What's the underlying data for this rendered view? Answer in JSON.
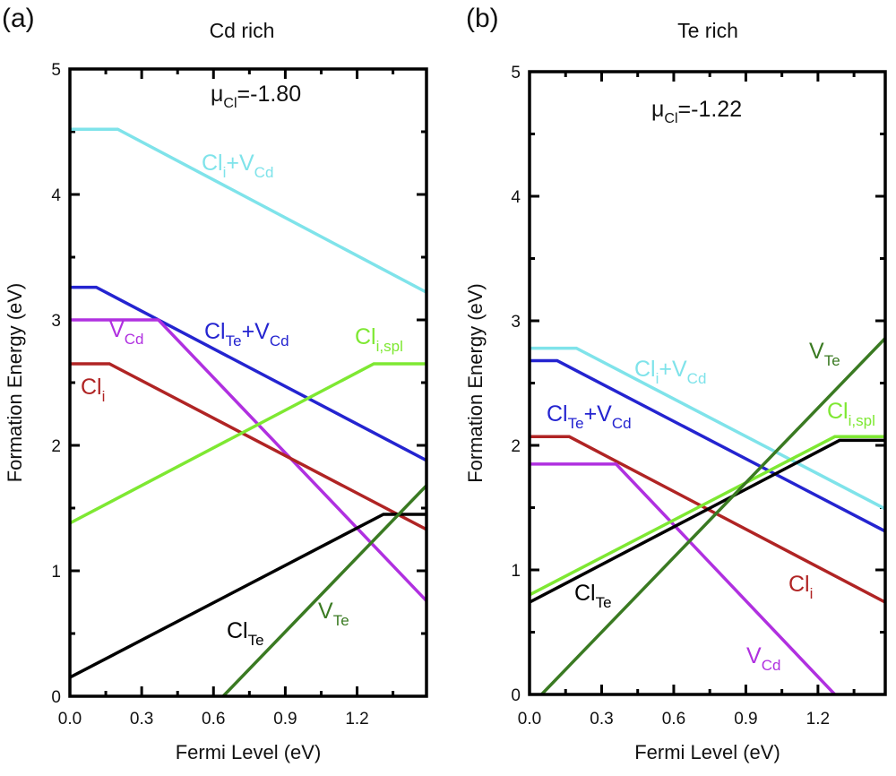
{
  "chart_data": [
    {
      "type": "line",
      "panel_label": "(a)",
      "title": "Cd rich",
      "annotation": {
        "mu": "μ",
        "sub": "Cl",
        "value": "=-1.80"
      },
      "xlabel": "Fermi Level (eV)",
      "ylabel": "Formation Energy (eV)",
      "xlim": [
        0,
        1.49
      ],
      "ylim": [
        0,
        5
      ],
      "xticks": [
        "0.0",
        "0.3",
        "0.6",
        "0.9",
        "1.2"
      ],
      "yticks": [
        "0",
        "1",
        "2",
        "3",
        "4",
        "5"
      ],
      "grid": false,
      "series": [
        {
          "name": "Cli+VCd",
          "label": [
            {
              "t": "Cl"
            },
            {
              "t": "i",
              "sub": true
            },
            {
              "t": "+V"
            },
            {
              "t": "Cd",
              "sub": true
            }
          ],
          "color": "#7fe3ea",
          "points": [
            [
              0,
              4.52
            ],
            [
              0.2,
              4.52
            ],
            [
              1.49,
              3.22
            ]
          ]
        },
        {
          "name": "ClTe+VCd",
          "label": [
            {
              "t": "Cl"
            },
            {
              "t": "Te",
              "sub": true
            },
            {
              "t": "+V"
            },
            {
              "t": "Cd",
              "sub": true
            }
          ],
          "color": "#2424d0",
          "points": [
            [
              0,
              3.26
            ],
            [
              0.11,
              3.26
            ],
            [
              1.49,
              1.88
            ]
          ]
        },
        {
          "name": "VCd",
          "label": [
            {
              "t": "V"
            },
            {
              "t": "Cd",
              "sub": true
            }
          ],
          "color": "#b030e0",
          "points": [
            [
              0,
              3.0
            ],
            [
              0.37,
              3.0
            ],
            [
              1.49,
              0.76
            ]
          ]
        },
        {
          "name": "Cli",
          "label": [
            {
              "t": "Cl"
            },
            {
              "t": "i",
              "sub": true
            }
          ],
          "color": "#b02424",
          "points": [
            [
              0,
              2.65
            ],
            [
              0.165,
              2.65
            ],
            [
              1.49,
              1.33
            ]
          ]
        },
        {
          "name": "Cli,spl",
          "label": [
            {
              "t": "Cl"
            },
            {
              "t": "i,spl",
              "sub": true
            }
          ],
          "color": "#7ee832",
          "points": [
            [
              0,
              1.38
            ],
            [
              1.27,
              2.65
            ],
            [
              1.49,
              2.65
            ]
          ]
        },
        {
          "name": "ClTe",
          "label": [
            {
              "t": "Cl"
            },
            {
              "t": "Te",
              "sub": true
            }
          ],
          "color": "#000000",
          "points": [
            [
              0,
              0.15
            ],
            [
              1.31,
              1.45
            ],
            [
              1.49,
              1.45
            ]
          ]
        },
        {
          "name": "VTe",
          "label": [
            {
              "t": "V"
            },
            {
              "t": "Te",
              "sub": true
            }
          ],
          "color": "#3a7a22",
          "points": [
            [
              0.64,
              0
            ],
            [
              1.49,
              1.68
            ]
          ]
        }
      ]
    },
    {
      "type": "line",
      "panel_label": "(b)",
      "title": "Te rich",
      "annotation": {
        "mu": "μ",
        "sub": "Cl",
        "value": "=-1.22"
      },
      "xlabel": "Fermi Level (eV)",
      "ylabel": "Formation Energy (eV)",
      "xlim": [
        0,
        1.48
      ],
      "ylim": [
        0,
        5
      ],
      "xticks": [
        "0.0",
        "0.3",
        "0.6",
        "0.9",
        "1.2"
      ],
      "yticks": [
        "0",
        "1",
        "2",
        "3",
        "4",
        "5"
      ],
      "grid": false,
      "series": [
        {
          "name": "Cli+VCd",
          "label": [
            {
              "t": "Cl"
            },
            {
              "t": "i",
              "sub": true
            },
            {
              "t": "+V"
            },
            {
              "t": "Cd",
              "sub": true
            }
          ],
          "color": "#7fe3ea",
          "points": [
            [
              0,
              2.78
            ],
            [
              0.195,
              2.78
            ],
            [
              1.48,
              1.49
            ]
          ]
        },
        {
          "name": "ClTe+VCd",
          "label": [
            {
              "t": "Cl"
            },
            {
              "t": "Te",
              "sub": true
            },
            {
              "t": "+V"
            },
            {
              "t": "Cd",
              "sub": true
            }
          ],
          "color": "#2424d0",
          "points": [
            [
              0,
              2.68
            ],
            [
              0.115,
              2.68
            ],
            [
              1.48,
              1.31
            ]
          ]
        },
        {
          "name": "Cli",
          "label": [
            {
              "t": "Cl"
            },
            {
              "t": "i",
              "sub": true
            }
          ],
          "color": "#b02424",
          "points": [
            [
              0,
              2.07
            ],
            [
              0.165,
              2.07
            ],
            [
              1.48,
              0.74
            ]
          ]
        },
        {
          "name": "VCd",
          "label": [
            {
              "t": "V"
            },
            {
              "t": "Cd",
              "sub": true
            }
          ],
          "color": "#b030e0",
          "points": [
            [
              0,
              1.85
            ],
            [
              0.36,
              1.85
            ],
            [
              1.27,
              0
            ]
          ]
        },
        {
          "name": "Cli,spl",
          "label": [
            {
              "t": "Cl"
            },
            {
              "t": "i,spl",
              "sub": true
            }
          ],
          "color": "#7ee832",
          "points": [
            [
              0,
              0.8
            ],
            [
              1.27,
              2.07
            ],
            [
              1.48,
              2.07
            ]
          ]
        },
        {
          "name": "ClTe",
          "label": [
            {
              "t": "Cl"
            },
            {
              "t": "Te",
              "sub": true
            }
          ],
          "color": "#000000",
          "points": [
            [
              0,
              0.74
            ],
            [
              1.29,
              2.04
            ],
            [
              1.48,
              2.04
            ]
          ]
        },
        {
          "name": "VTe",
          "label": [
            {
              "t": "V"
            },
            {
              "t": "Te",
              "sub": true
            }
          ],
          "color": "#3a7a22",
          "points": [
            [
              0.05,
              0
            ],
            [
              1.48,
              2.86
            ]
          ]
        }
      ]
    }
  ]
}
